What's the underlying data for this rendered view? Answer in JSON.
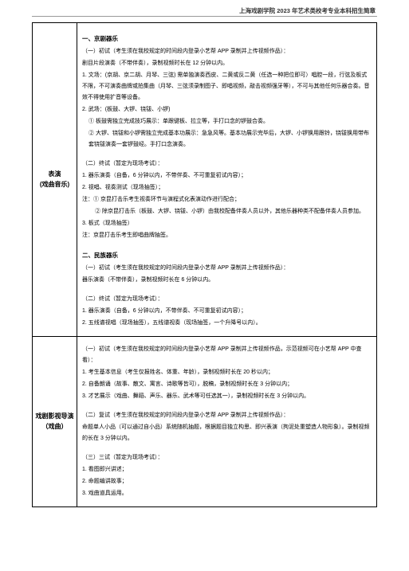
{
  "header": "上海戏剧学院 2023 年艺术类校考专业本科招生简章",
  "row1": {
    "label_line1": "表演",
    "label_line2": "(戏曲音乐)",
    "sec1_title": "一、京剧器乐",
    "sec1_p1": "（一）初试（考生须在我校规定的时间段内登录小艺帮 APP 录制并上传视频作品）：",
    "sec1_p2": "剧目片段演奏（不带伴奏），录制视频时长在 12 分钟以内。",
    "sec1_p3": "1. 文场：(京胡、京二胡、月琴、三弦) 需单独演奏西皮、二黄或反二黄（任选一种把位即可）唱腔一段，行弦及板式不限，不可演奏曲牌或拍集曲（月琴、三弦须录制图子、即唱视频，敲击视频强牙等），不可与其他任何乐器合奏。音效不得使用扩音等设备。",
    "sec1_p4": "2. 武场：(板鼓、大锣、铙钹、小锣)",
    "sec1_p5": "① 板鼓需独立完成技巧展示：单跟键板、拉立等，手打口念的锣鼓合奏。",
    "sec1_p6": "② 大锣、铙钹和小锣需独立完成基本功展示：急急风等。基本功展示完毕后，大锣、小锣换用跟铃，铙钹换用带布套铙钹演奏一套锣鼓经。手打口念演奏。",
    "sec1_p7": "（二）终试（暂定为现场考试）：",
    "sec1_p8": "1. 器乐演奏（自备，6 分钟以内，不带伴奏、不可重复初试内容）；",
    "sec1_p9": "2. 视唱、视奏测试（现场抽签）；",
    "sec1_p10": "注：① 京昆打击乐考生视奏环节与演程式化表演动作进行配合；",
    "sec1_p11": "② 除京昆打击乐（板鼓、大锣、铙钹、小锣）由我校配备伴奏人员以外，其他乐器种类不配备伴奏人员参加。",
    "sec1_p12": "3. 板式（现场抽签）",
    "sec1_p13": "注：京昆打击乐考生即唱曲牌抽签。",
    "sec2_title": "二、民族器乐",
    "sec2_p1": "（一）初试（考生须在我校规定的时间段内登录小艺帮 APP 录制并上传视频作品）：",
    "sec2_p2": "器乐演奏（不带伴奏），录制视频时长在 6 分钟以内。",
    "sec2_p3": "（二）终试（暂定为现场考试）：",
    "sec2_p4": "1. 器乐演奏（自备，6 分钟以内，不带伴奏、不可重复初试内容）；",
    "sec2_p5": "2. 五线谱视唱（现场抽签），五线谱视奏（现场抽签，一个升降号以内）。"
  },
  "row2": {
    "label": "戏剧影视导演（戏曲）",
    "p1": "（一）初试（考生须在我校规定的时间段内登录小艺帮 APP 录制并上传视频作品，示范视频可在小艺帮 APP 中查看）：",
    "p2": "1. 考生基本信息（考生仅报姓名、体重、年龄），录制视频时长在 20 秒以内；",
    "p3": "2. 自备朗诵（故事、散文、寓言、诗歌等皆可），脱稿，录制视频时长在 3 分钟以内；",
    "p4": "3. 才艺展示（戏曲、舞蹈、声乐、器乐、武术等可任选其一），录制视频时长在 3 分钟以内。",
    "p5": "（二）复试（考生须在我校规定的时间段内登录小艺帮 APP 录制并上传视频作品）：",
    "p6": "命题单人小品（可以通过自小品）系统随机抽题，根据题目独立构思、即兴表演（拘泥处重塑造人物形象）。录制视频的长在 3 分钟以内。",
    "p7": "（三）三试（暂定为现场考试）：",
    "p8": "1. 看图即兴讲述；",
    "p9": "2. 命题编讲故事；",
    "p10": "3. 戏曲道具运用。"
  }
}
